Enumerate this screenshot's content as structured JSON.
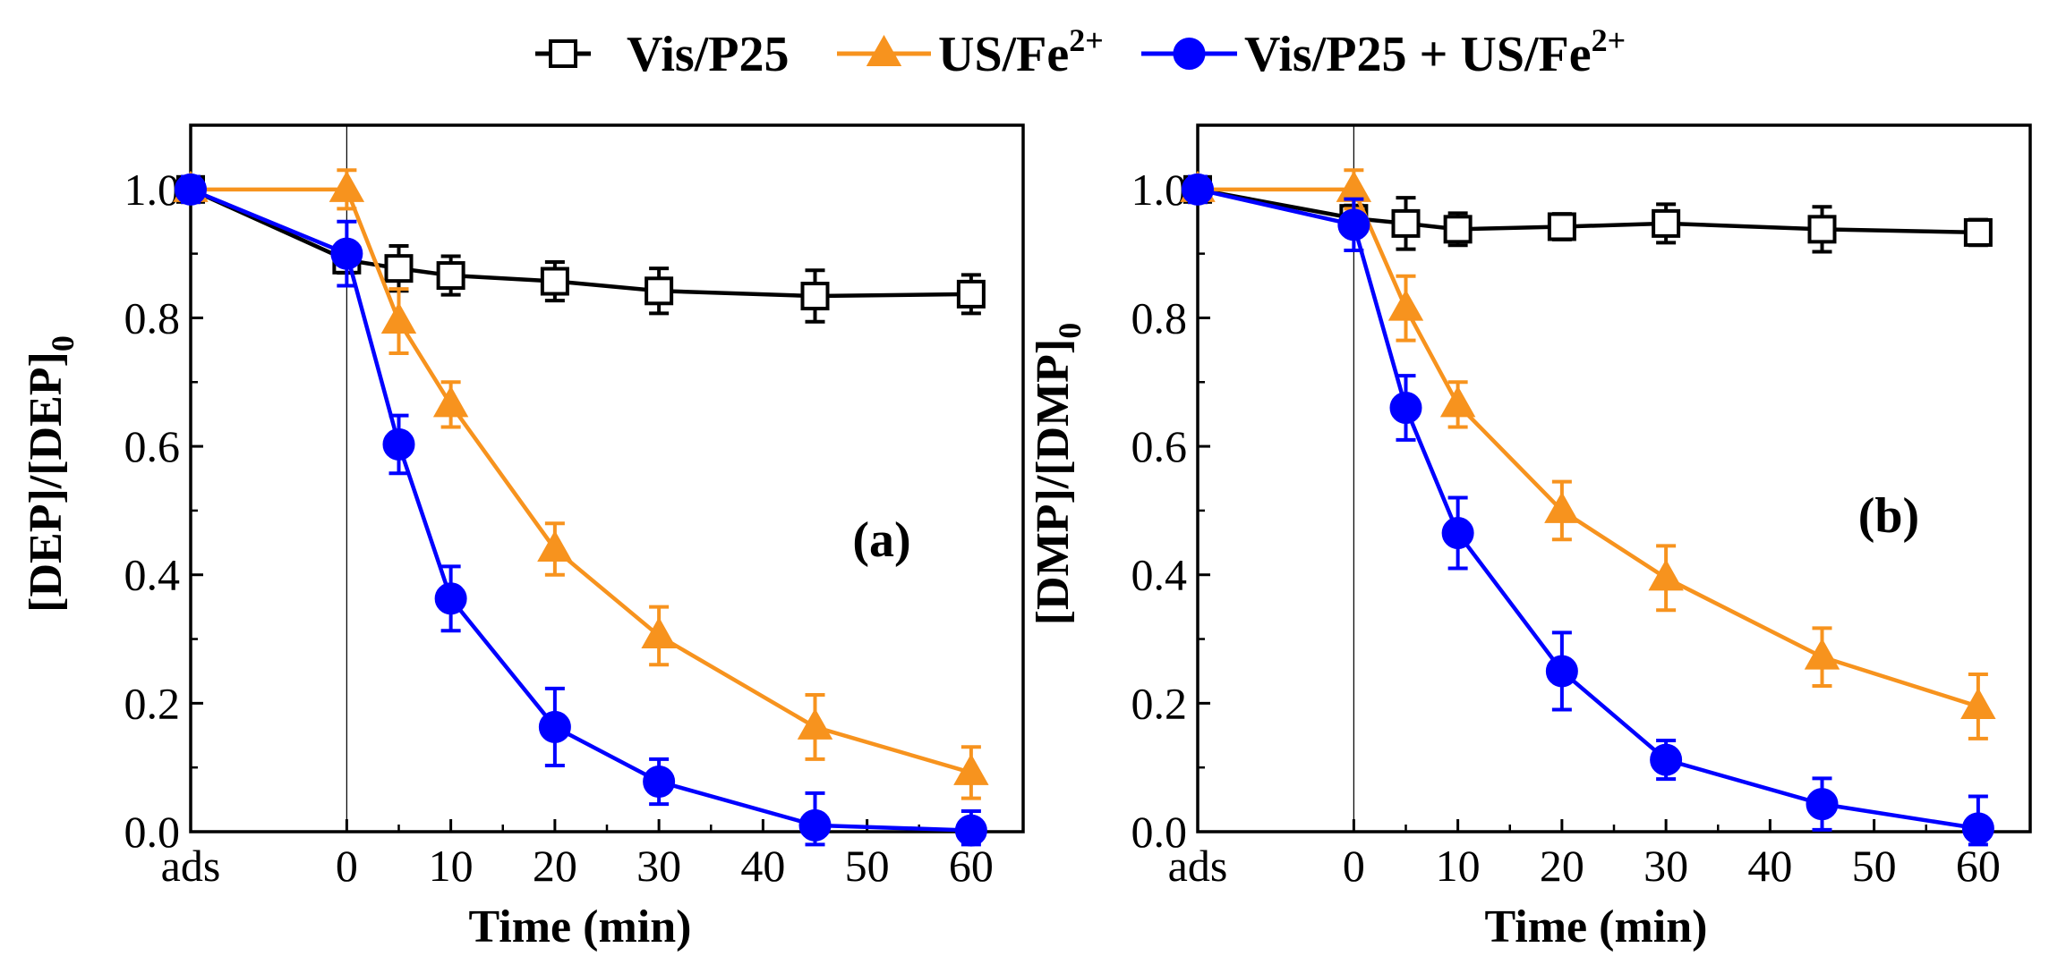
{
  "legend": [
    {
      "name": "Vis/P25",
      "base": "Vis/P25",
      "sup": "",
      "color": "#000000",
      "marker": "open-square"
    },
    {
      "name": "US/Fe2+",
      "base": "US/Fe",
      "sup": "2+",
      "color": "#f7931e",
      "marker": "filled-triangle"
    },
    {
      "name": "Vis/P25 + US/Fe2+",
      "base": "Vis/P25 + US/Fe",
      "sup": "2+",
      "color": "#0000ff",
      "marker": "filled-circle"
    }
  ],
  "chart_data": [
    {
      "type": "line",
      "panel_label": "(a)",
      "title": "",
      "xlabel": "Time (min)",
      "ylabel_base": "[DEP]/[DEP]",
      "ylabel_sub": "0",
      "x_ticks": [
        "ads",
        "0",
        "10",
        "20",
        "30",
        "40",
        "50",
        "60"
      ],
      "x_tick_values": [
        -15,
        0,
        10,
        20,
        30,
        40,
        50,
        60
      ],
      "xlim": [
        -15,
        65
      ],
      "y_ticks": [
        "0.0",
        "0.2",
        "0.4",
        "0.6",
        "0.8",
        "1.0"
      ],
      "y_tick_values": [
        0,
        0.2,
        0.4,
        0.6,
        0.8,
        1.0
      ],
      "ylim": [
        0,
        1.1
      ],
      "vertical_line_x": 0,
      "series": [
        {
          "name": "Vis/P25",
          "x": [
            -15,
            0,
            5,
            10,
            20,
            30,
            45,
            60
          ],
          "values": [
            1.0,
            0.89,
            0.877,
            0.866,
            0.857,
            0.842,
            0.834,
            0.837
          ],
          "errors": [
            0.02,
            0.02,
            0.035,
            0.03,
            0.03,
            0.035,
            0.04,
            0.03
          ]
        },
        {
          "name": "US/Fe2+",
          "x": [
            -15,
            0,
            5,
            10,
            20,
            30,
            45,
            60
          ],
          "values": [
            1.0,
            1.0,
            0.795,
            0.665,
            0.44,
            0.305,
            0.163,
            0.092
          ],
          "errors": [
            0.02,
            0.03,
            0.05,
            0.035,
            0.04,
            0.045,
            0.05,
            0.04
          ]
        },
        {
          "name": "Vis/P25 + US/Fe2+",
          "x": [
            -15,
            0,
            5,
            10,
            20,
            30,
            45,
            60
          ],
          "values": [
            1.0,
            0.9,
            0.603,
            0.363,
            0.163,
            0.078,
            0.01,
            0.002
          ],
          "errors": [
            0.02,
            0.05,
            0.045,
            0.05,
            0.06,
            0.035,
            0.05,
            0.03
          ]
        }
      ]
    },
    {
      "type": "line",
      "panel_label": "(b)",
      "title": "",
      "xlabel": "Time (min)",
      "ylabel_base": "[DMP]/[DMP]",
      "ylabel_sub": "0",
      "x_ticks": [
        "ads",
        "0",
        "10",
        "20",
        "30",
        "40",
        "50",
        "60"
      ],
      "x_tick_values": [
        -15,
        0,
        10,
        20,
        30,
        40,
        50,
        60
      ],
      "xlim": [
        -15,
        65
      ],
      "y_ticks": [
        "0.0",
        "0.2",
        "0.4",
        "0.6",
        "0.8",
        "1.0"
      ],
      "y_tick_values": [
        0,
        0.2,
        0.4,
        0.6,
        0.8,
        1.0
      ],
      "ylim": [
        0,
        1.1
      ],
      "vertical_line_x": 0,
      "series": [
        {
          "name": "Vis/P25",
          "x": [
            -15,
            0,
            5,
            10,
            20,
            30,
            45,
            60
          ],
          "values": [
            1.0,
            0.955,
            0.947,
            0.938,
            0.942,
            0.947,
            0.938,
            0.933
          ],
          "errors": [
            0.02,
            0.02,
            0.04,
            0.025,
            0.02,
            0.03,
            0.035,
            0.02
          ]
        },
        {
          "name": "US/Fe2+",
          "x": [
            -15,
            0,
            5,
            10,
            20,
            30,
            45,
            60
          ],
          "values": [
            1.0,
            1.0,
            0.815,
            0.665,
            0.5,
            0.395,
            0.272,
            0.195
          ],
          "errors": [
            0.02,
            0.03,
            0.05,
            0.035,
            0.045,
            0.05,
            0.045,
            0.05
          ]
        },
        {
          "name": "Vis/P25 + US/Fe2+",
          "x": [
            -15,
            0,
            5,
            10,
            20,
            30,
            45,
            60
          ],
          "values": [
            1.0,
            0.945,
            0.66,
            0.465,
            0.25,
            0.112,
            0.043,
            0.005
          ],
          "errors": [
            0.02,
            0.04,
            0.05,
            0.055,
            0.06,
            0.03,
            0.04,
            0.05
          ]
        }
      ]
    }
  ]
}
